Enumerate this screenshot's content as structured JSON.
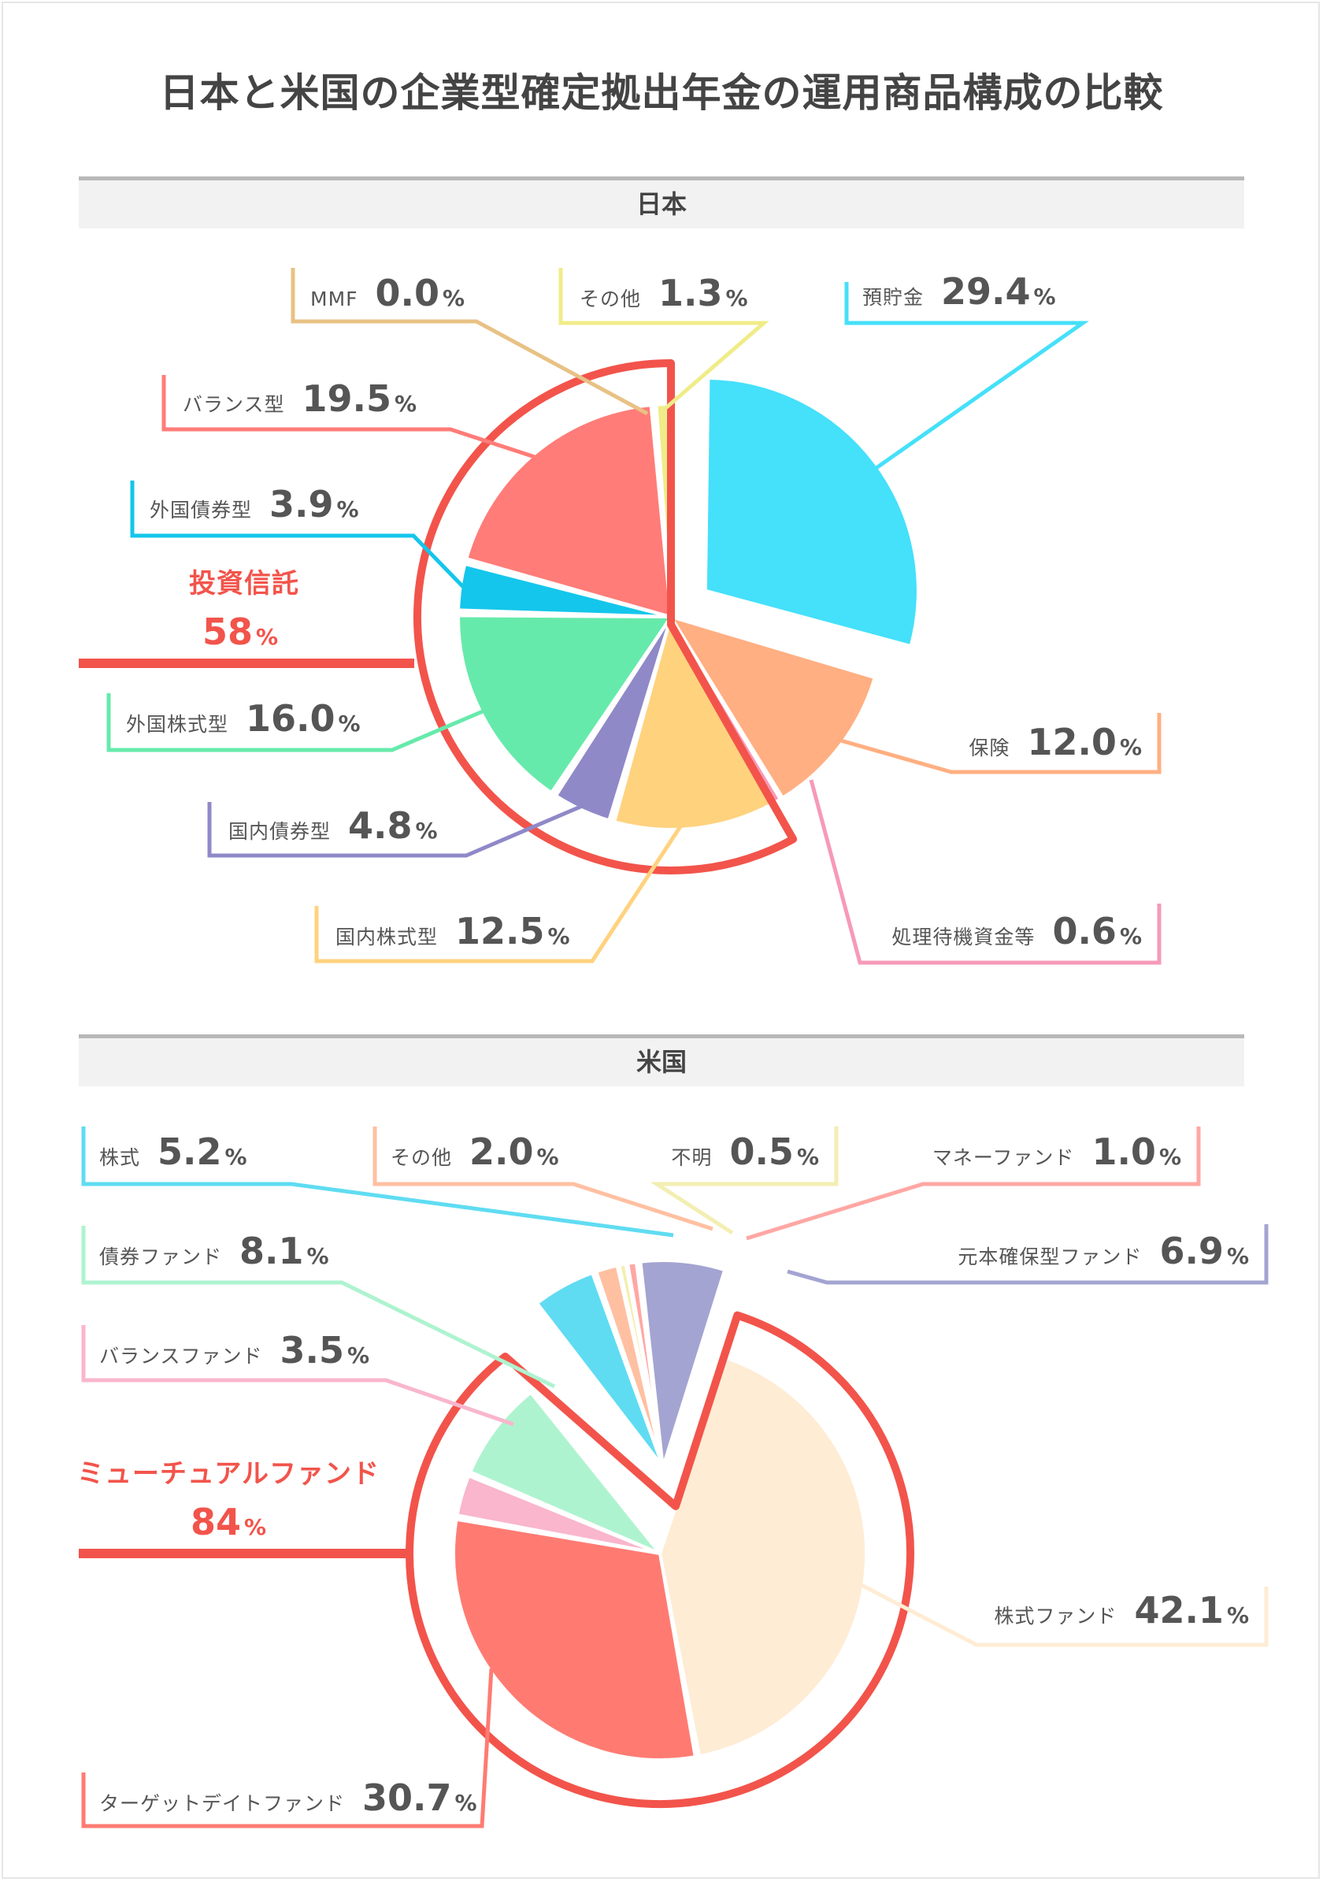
{
  "title": "日本と米国の企業型確定拠出年金の運用商品構成の比較",
  "pct_sign": "%",
  "chart_data": [
    {
      "type": "pie",
      "title": "日本",
      "highlight": {
        "label": "投資信託",
        "value": "58",
        "color": "#f2544b"
      },
      "slices": [
        {
          "label": "預貯金",
          "value": "29.4",
          "color": "#45e0fa"
        },
        {
          "label": "保険",
          "value": "12.0",
          "color": "#ffaf82"
        },
        {
          "label": "処理待機資金等",
          "value": "0.6",
          "color": "#f69ab8"
        },
        {
          "label": "国内株式型",
          "value": "12.5",
          "color": "#ffd27e"
        },
        {
          "label": "国内債券型",
          "value": "4.8",
          "color": "#8f89c8"
        },
        {
          "label": "外国株式型",
          "value": "16.0",
          "color": "#66eaab"
        },
        {
          "label": "外国債券型",
          "value": "3.9",
          "color": "#14c6eb"
        },
        {
          "label": "バランス型",
          "value": "19.5",
          "color": "#ff7c78"
        },
        {
          "label": "MMF",
          "value": "0.0",
          "color": "#e8c184"
        },
        {
          "label": "その他",
          "value": "1.3",
          "color": "#f0ec88"
        }
      ]
    },
    {
      "type": "pie",
      "title": "米国",
      "highlight": {
        "label": "ミューチュアルファンド",
        "value": "84",
        "color": "#f2544b"
      },
      "slices": [
        {
          "label": "株式ファンド",
          "value": "42.1",
          "color": "#feecd4"
        },
        {
          "label": "ターゲットデイトファンド",
          "value": "30.7",
          "color": "#ff7b72"
        },
        {
          "label": "バランスファンド",
          "value": "3.5",
          "color": "#f9b6cc"
        },
        {
          "label": "債券ファンド",
          "value": "8.1",
          "color": "#aef3d0"
        },
        {
          "label": "株式",
          "value": "5.2",
          "color": "#5fdcf2"
        },
        {
          "label": "その他",
          "value": "2.0",
          "color": "#ffc0a2"
        },
        {
          "label": "不明",
          "value": "0.5",
          "color": "#f3eeb2"
        },
        {
          "label": "マネーファンド",
          "value": "1.0",
          "color": "#ffa7a4"
        },
        {
          "label": "元本確保型ファンド",
          "value": "6.9",
          "color": "#a4a4d2"
        }
      ]
    }
  ]
}
